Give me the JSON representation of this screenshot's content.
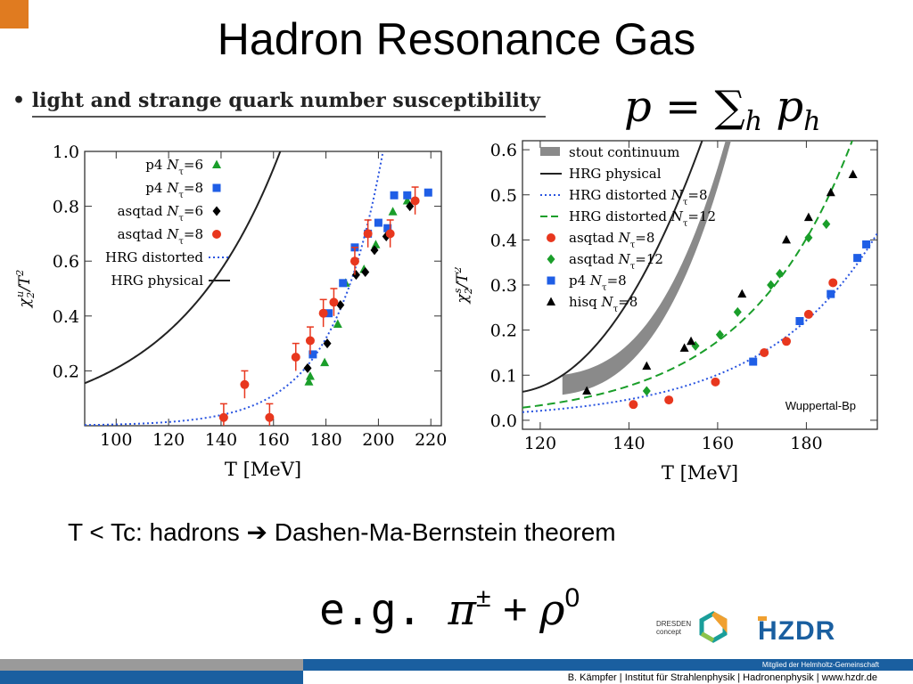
{
  "slide": {
    "title": "Hadron Resonance Gas",
    "bullet": "light and strange quark number susceptibility",
    "formula": {
      "p": "p",
      "eq": "=",
      "sum": "∑",
      "h": "h",
      "ph": "p"
    },
    "caption_left": "T < Tc: hadrons ",
    "arrow": "➔",
    "caption_right": " Dashen-Ma-Bernstein theorem",
    "example_prefix": "e.g. ",
    "example_pi": "π",
    "example_pm": "±",
    "example_plus": " + ",
    "example_rho": "ρ",
    "example_zero": "0",
    "colors": {
      "accent": "#e07b20",
      "hzdr_blue": "#1a5fa0",
      "bar_grey": "#9a9a9a"
    }
  },
  "logos": {
    "dresden": {
      "line1": "DRESDEN",
      "line2": "concept"
    },
    "hzdr": "HZDR"
  },
  "footer": {
    "membership": "Mitglied der Helmholtz-Gemeinschaft",
    "credit": "B. Kämpfer | Institut für Strahlenphysik | Hadronenphysik | www.hzdr.de"
  },
  "chart_data": [
    {
      "type": "scatter",
      "xlabel": "T [MeV]",
      "ylabel": "χ2u/T2",
      "xlim": [
        88,
        224
      ],
      "ylim": [
        0,
        1.0
      ],
      "xticks": [
        100,
        120,
        140,
        160,
        180,
        200,
        220
      ],
      "yticks": [
        0.2,
        0.4,
        0.6,
        0.8,
        1.0
      ],
      "yticklabels": [
        "0.2",
        "0.4",
        "0.6",
        "0.8",
        "1.0"
      ],
      "legend_position": "top-left",
      "series": [
        {
          "name": "p4 Nτ=6",
          "marker": "triangle",
          "color": "#1a9e2a",
          "points": [
            [
              173.5,
              0.16
            ],
            [
              174,
              0.18
            ],
            [
              179.5,
              0.23
            ],
            [
              184.5,
              0.37
            ],
            [
              187.5,
              0.52
            ],
            [
              194.5,
              0.57
            ],
            [
              199,
              0.66
            ],
            [
              205.5,
              0.78
            ],
            [
              211,
              0.82
            ]
          ]
        },
        {
          "name": "p4 Nτ=8",
          "marker": "square",
          "color": "#1f5ee6",
          "points": [
            [
              175,
              0.26
            ],
            [
              181,
              0.41
            ],
            [
              186.5,
              0.52
            ],
            [
              191,
              0.65
            ],
            [
              196,
              0.7
            ],
            [
              200,
              0.74
            ],
            [
              203.5,
              0.72
            ],
            [
              206,
              0.84
            ],
            [
              211,
              0.84
            ],
            [
              219,
              0.85
            ]
          ]
        },
        {
          "name": "asqtad Nτ=6",
          "marker": "diamond",
          "color": "#000000",
          "points": [
            [
              173,
              0.21
            ],
            [
              180.5,
              0.3
            ],
            [
              185.5,
              0.44
            ],
            [
              191.5,
              0.55
            ],
            [
              195,
              0.56
            ],
            [
              198.5,
              0.64
            ],
            [
              203,
              0.69
            ],
            [
              212,
              0.8
            ]
          ]
        },
        {
          "name": "asqtad Nτ=8",
          "marker": "circle",
          "color": "#e8371e",
          "points": [
            [
              141,
              0.03
            ],
            [
              149,
              0.15
            ],
            [
              158.5,
              0.03
            ],
            [
              168.5,
              0.25
            ],
            [
              174,
              0.31
            ],
            [
              179,
              0.41
            ],
            [
              183,
              0.45
            ],
            [
              191,
              0.6
            ],
            [
              196,
              0.7
            ],
            [
              204.5,
              0.7
            ],
            [
              214,
              0.82
            ]
          ]
        }
      ],
      "lines": [
        {
          "name": "HRG distorted",
          "style": "dotted",
          "color": "#2a55e0"
        },
        {
          "name": "HRG physical",
          "style": "solid",
          "color": "#222222"
        }
      ]
    },
    {
      "type": "scatter",
      "xlabel": "T [MeV]",
      "ylabel": "χ2s/T2",
      "xlim": [
        116,
        196
      ],
      "ylim": [
        -0.02,
        0.62
      ],
      "xticks": [
        120,
        140,
        160,
        180
      ],
      "yticks": [
        0.0,
        0.1,
        0.2,
        0.3,
        0.4,
        0.5,
        0.6
      ],
      "yticklabels": [
        "0.0",
        "0.1",
        "0.2",
        "0.3",
        "0.4",
        "0.5",
        "0.6"
      ],
      "legend_position": "top-left",
      "annotation": "Wuppertal-Bp",
      "band": {
        "name": "stout continuum",
        "color": "#8a8a8a"
      },
      "series": [
        {
          "name": "asqtad Nτ=8",
          "marker": "circle",
          "color": "#e8371e",
          "points": [
            [
              141,
              0.035
            ],
            [
              149,
              0.045
            ],
            [
              159.5,
              0.085
            ],
            [
              170.5,
              0.15
            ],
            [
              175.5,
              0.175
            ],
            [
              180.5,
              0.235
            ],
            [
              186,
              0.305
            ]
          ]
        },
        {
          "name": "asqtad Nτ=12",
          "marker": "diamond",
          "color": "#1a9e2a",
          "points": [
            [
              144,
              0.065
            ],
            [
              155,
              0.165
            ],
            [
              160.5,
              0.19
            ],
            [
              164.5,
              0.24
            ],
            [
              172,
              0.3
            ],
            [
              174,
              0.325
            ],
            [
              180.5,
              0.405
            ],
            [
              184.5,
              0.435
            ]
          ]
        },
        {
          "name": "p4 Nτ=8",
          "marker": "square",
          "color": "#1f5ee6",
          "points": [
            [
              168,
              0.13
            ],
            [
              178.5,
              0.22
            ],
            [
              185.5,
              0.28
            ],
            [
              191.5,
              0.36
            ],
            [
              193.5,
              0.39
            ]
          ]
        },
        {
          "name": "hisq Nτ=8",
          "marker": "triangle",
          "color": "#000000",
          "points": [
            [
              130.5,
              0.065
            ],
            [
              144,
              0.12
            ],
            [
              152.5,
              0.16
            ],
            [
              154,
              0.175
            ],
            [
              165.5,
              0.28
            ],
            [
              175.5,
              0.4
            ],
            [
              180.5,
              0.45
            ],
            [
              185.5,
              0.505
            ],
            [
              190.5,
              0.545
            ]
          ]
        }
      ],
      "lines": [
        {
          "name": "HRG physical",
          "style": "solid",
          "color": "#222222"
        },
        {
          "name": "HRG distorted Nτ=8",
          "style": "dotted",
          "color": "#2a55e0"
        },
        {
          "name": "HRG distorted Nτ=12",
          "style": "dashed",
          "color": "#1a9e2a"
        }
      ]
    }
  ]
}
